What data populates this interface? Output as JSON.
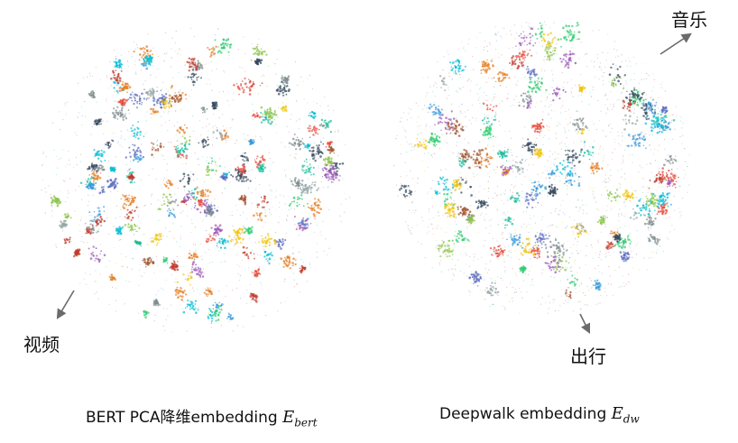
{
  "panels": [
    {
      "caption_prefix": "BERT PCA降维embedding ",
      "symbol": "E",
      "subscript": "bert"
    },
    {
      "caption_prefix": "Deepwalk embedding ",
      "symbol": "E",
      "subscript": "dw"
    }
  ],
  "annotations": {
    "video": "视频",
    "music": "音乐",
    "travel": "出行"
  },
  "colors": {
    "arrow": "#6b6b6b",
    "point_palette": [
      "#9b59b6",
      "#2ecc71",
      "#e67e22",
      "#1abc9c",
      "#3498db",
      "#e74c3c",
      "#95a5a6",
      "#34495e",
      "#f1c40f",
      "#7f8c8d",
      "#00bcd4",
      "#8bc34a",
      "#c0392b",
      "#a0522d",
      "#5c6bc0"
    ]
  }
}
